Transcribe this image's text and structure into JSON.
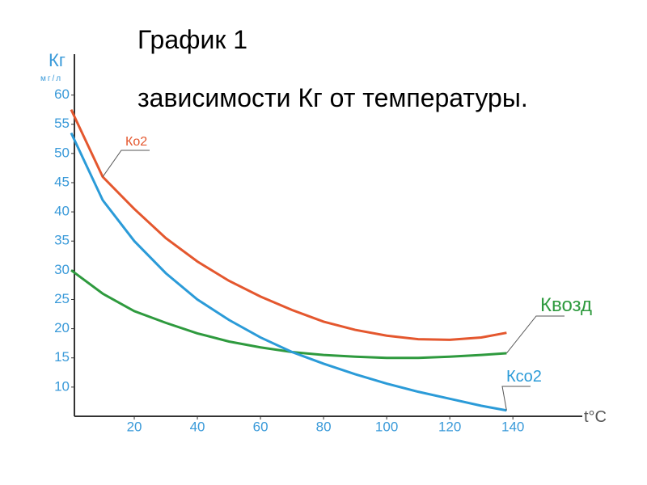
{
  "chart_data": {
    "type": "line",
    "title": "График 1",
    "subtitle": "зависимости Кг от температуры.",
    "y_label": "Кг",
    "y_unit": "мг/л",
    "x_label": "t°C",
    "x": [
      0,
      10,
      20,
      30,
      40,
      50,
      60,
      70,
      80,
      90,
      100,
      110,
      120,
      130,
      138
    ],
    "series": [
      {
        "name": "Ко2",
        "color": "#e4572e",
        "values": [
          57.5,
          46,
          40.5,
          35.5,
          31.5,
          28.2,
          25.5,
          23.2,
          21.2,
          19.8,
          18.8,
          18.2,
          18.1,
          18.5,
          19.3
        ]
      },
      {
        "name": "Квозд",
        "color": "#2e9a3e",
        "values": [
          30,
          26,
          23,
          21,
          19.2,
          17.8,
          16.8,
          16,
          15.5,
          15.2,
          15,
          15,
          15.2,
          15.5,
          15.8
        ]
      },
      {
        "name": "Кco2",
        "color": "#2b9bd8",
        "values": [
          53.5,
          42,
          35,
          29.5,
          25,
          21.5,
          18.5,
          16,
          14,
          12.2,
          10.6,
          9.2,
          8,
          6.8,
          6
        ]
      }
    ],
    "xlim": [
      0,
      162
    ],
    "ylim": [
      5,
      67
    ],
    "xticks": [
      20,
      40,
      60,
      80,
      100,
      120,
      140
    ],
    "yticks": [
      10,
      15,
      20,
      25,
      30,
      35,
      40,
      45,
      50,
      55,
      60
    ]
  }
}
